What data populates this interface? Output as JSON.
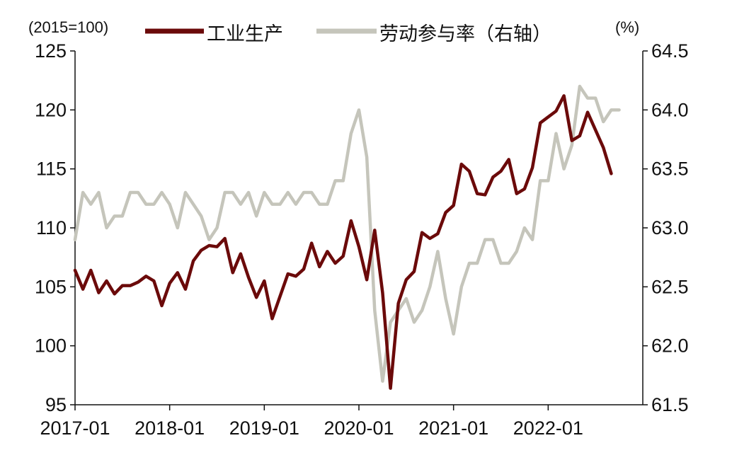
{
  "chart_data": {
    "type": "line",
    "left_axis_unit": "(2015=100)",
    "right_axis_unit": "(%)",
    "y_left": {
      "ylim": [
        95,
        125
      ],
      "ticks": [
        "95",
        "100",
        "105",
        "110",
        "115",
        "120",
        "125"
      ]
    },
    "y_right": {
      "ylim": [
        61.5,
        64.5
      ],
      "ticks": [
        "61.5",
        "62.0",
        "62.5",
        "63.0",
        "63.5",
        "64.0",
        "64.5"
      ]
    },
    "x_ticks": [
      "2017-01",
      "2018-01",
      "2019-01",
      "2020-01",
      "2021-01",
      "2022-01"
    ],
    "grid": false,
    "legend_position": "top",
    "series": [
      {
        "name": "工业生产",
        "axis": "left",
        "color": "#6b0a0a",
        "start": "2017-01",
        "values": [
          106.4,
          104.8,
          106.4,
          104.5,
          105.5,
          104.4,
          105.1,
          105.1,
          105.4,
          105.9,
          105.5,
          103.4,
          105.3,
          106.2,
          104.8,
          107.2,
          108.1,
          108.5,
          108.4,
          109.1,
          106.2,
          107.8,
          105.8,
          104.1,
          105.5,
          102.3,
          104.2,
          106.1,
          105.9,
          106.5,
          108.7,
          106.7,
          108.0,
          107.0,
          107.6,
          110.6,
          108.4,
          105.6,
          109.8,
          104.5,
          96.4,
          103.6,
          105.6,
          106.3,
          109.6,
          109.1,
          109.5,
          111.3,
          111.9,
          115.4,
          114.8,
          112.9,
          112.8,
          114.3,
          114.8,
          115.8,
          112.9,
          113.3,
          115.1,
          118.9,
          119.4,
          119.9,
          121.2,
          117.4,
          117.8,
          119.8,
          118.3,
          116.8,
          114.6
        ]
      },
      {
        "name": "劳动参与率（右轴）",
        "axis": "right",
        "color": "#c5c5bb",
        "start": "2017-01",
        "values": [
          62.9,
          63.3,
          63.2,
          63.3,
          63.0,
          63.1,
          63.1,
          63.3,
          63.3,
          63.2,
          63.2,
          63.3,
          63.2,
          63.0,
          63.3,
          63.2,
          63.1,
          62.9,
          63.0,
          63.3,
          63.3,
          63.2,
          63.3,
          63.1,
          63.3,
          63.2,
          63.2,
          63.3,
          63.2,
          63.3,
          63.3,
          63.2,
          63.2,
          63.4,
          63.4,
          63.8,
          64.0,
          63.6,
          62.3,
          61.7,
          62.2,
          62.3,
          62.4,
          62.2,
          62.3,
          62.5,
          62.8,
          62.4,
          62.1,
          62.5,
          62.7,
          62.7,
          62.9,
          62.9,
          62.7,
          62.7,
          62.8,
          63.0,
          62.9,
          63.4,
          63.4,
          63.8,
          63.5,
          63.7,
          64.2,
          64.1,
          64.1,
          63.9,
          64.0,
          64.0
        ]
      }
    ]
  }
}
